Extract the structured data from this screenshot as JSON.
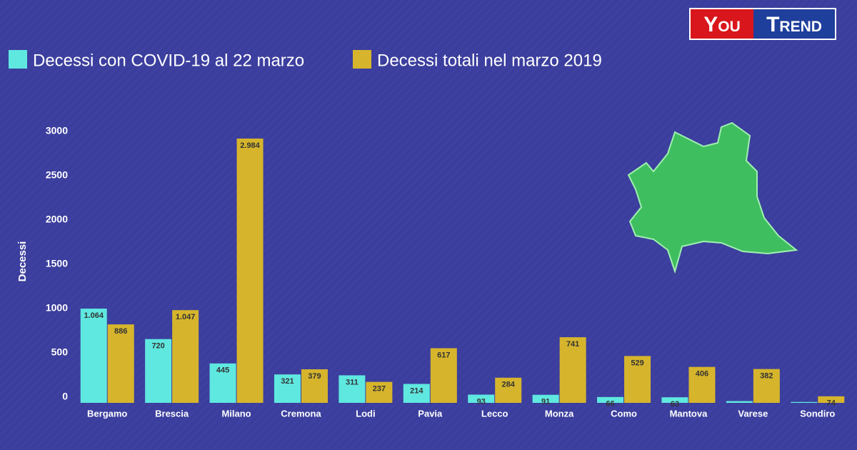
{
  "brand": {
    "left": "You",
    "right": "Trend"
  },
  "chart_data": {
    "type": "bar",
    "y_label": "Decessi",
    "categories": [
      "Bergamo",
      "Brescia",
      "Milano",
      "Cremona",
      "Lodi",
      "Pavia",
      "Lecco",
      "Monza",
      "Como",
      "Mantova",
      "Varese",
      "Sondiro"
    ],
    "series": [
      {
        "name": "Decessi con COVID-19 al 22 marzo",
        "color": "#5fe8e0",
        "values": [
          1064,
          720,
          445,
          321,
          311,
          214,
          93,
          91,
          66,
          63,
          20,
          10
        ],
        "value_labels": [
          "1.064",
          "720",
          "445",
          "321",
          "311",
          "214",
          "93",
          "91",
          "66",
          "63",
          null,
          null
        ]
      },
      {
        "name": "Decessi totali nel marzo 2019",
        "color": "#d6b52c",
        "values": [
          886,
          1047,
          2984,
          379,
          237,
          617,
          284,
          741,
          529,
          406,
          382,
          74
        ],
        "value_labels": [
          "886",
          "1.047",
          "2.984",
          "379",
          "237",
          "617",
          "284",
          "741",
          "529",
          "406",
          "382",
          "74"
        ]
      }
    ],
    "ylim": [
      0,
      3000
    ],
    "yticks": [
      0,
      500,
      1000,
      1500,
      2000,
      2500,
      3000
    ],
    "grid": false
  }
}
